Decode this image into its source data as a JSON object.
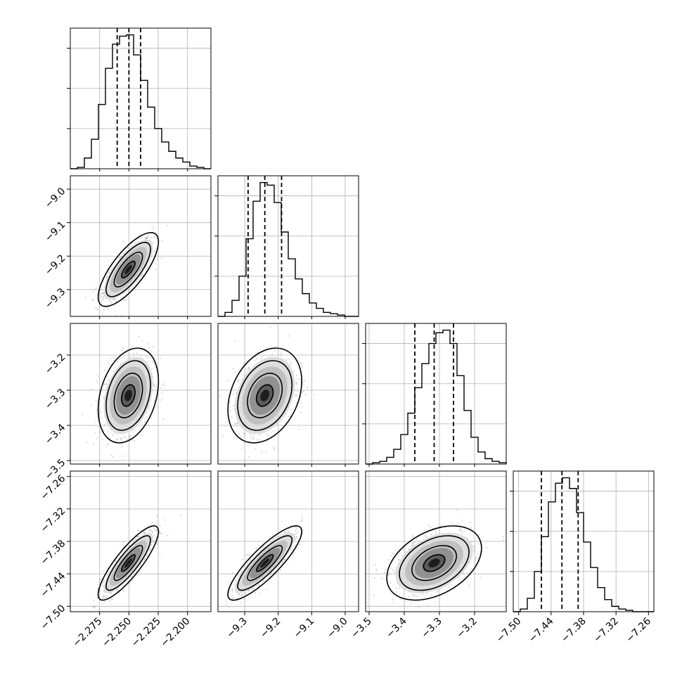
{
  "chart_data": {
    "type": "corner",
    "grid": true,
    "colors": {
      "frame": "#000000",
      "grid": "#b0b0b0",
      "points": "#808080",
      "hist": "#000000"
    },
    "parameters": [
      {
        "range": [
          -2.3,
          -2.18
        ],
        "ticks": [
          -2.275,
          -2.25,
          -2.225,
          -2.2
        ],
        "tick_labels": [
          "−2.275",
          "−2.250",
          "−2.225",
          "−2.200"
        ],
        "quantiles": [
          -2.26,
          -2.25,
          -2.24
        ],
        "mean": -2.2505,
        "sd": 0.0105
      },
      {
        "range": [
          -9.38,
          -8.96
        ],
        "ticks": [
          -9.3,
          -9.2,
          -9.1,
          -9.0
        ],
        "tick_labels": [
          "−9.3",
          "−9.2",
          "−9.1",
          "−9.0"
        ],
        "quantiles": [
          -9.29,
          -9.24,
          -9.19
        ],
        "mean": -9.24,
        "sd": 0.045
      },
      {
        "range": [
          -3.51,
          -3.11
        ],
        "ticks": [
          -3.5,
          -3.4,
          -3.3,
          -3.2
        ],
        "tick_labels": [
          "−3.5",
          "−3.4",
          "−3.3",
          "−3.2"
        ],
        "quantiles": [
          -3.37,
          -3.315,
          -3.26
        ],
        "mean": -3.315,
        "sd": 0.055
      },
      {
        "range": [
          -7.51,
          -7.25
        ],
        "ticks": [
          -7.5,
          -7.44,
          -7.38,
          -7.32,
          -7.26
        ],
        "tick_labels": [
          "−7.50",
          "−7.44",
          "−7.38",
          "−7.32",
          "−7.26"
        ],
        "quantiles": [
          -7.458,
          -7.42,
          -7.39
        ],
        "mean": -7.42,
        "sd": 0.028
      }
    ],
    "correlations": {
      "1-0": 0.75,
      "2-0": 0.3,
      "2-1": 0.3,
      "3-0": 0.85,
      "3-1": 0.85,
      "3-2": 0.4
    },
    "histograms": [
      [
        0.0,
        0.01,
        0.08,
        0.22,
        0.48,
        0.75,
        0.93,
        0.99,
        1.0,
        0.85,
        0.66,
        0.46,
        0.3,
        0.2,
        0.13,
        0.08,
        0.05,
        0.02,
        0.01,
        0.0
      ],
      [
        0.0,
        0.03,
        0.12,
        0.3,
        0.58,
        0.86,
        1.0,
        0.98,
        0.85,
        0.63,
        0.43,
        0.28,
        0.17,
        0.1,
        0.06,
        0.03,
        0.02,
        0.01,
        0.0,
        0.0
      ],
      [
        0.0,
        0.01,
        0.02,
        0.05,
        0.11,
        0.22,
        0.38,
        0.57,
        0.75,
        0.9,
        0.98,
        1.0,
        0.9,
        0.66,
        0.4,
        0.2,
        0.09,
        0.04,
        0.02,
        0.01
      ],
      [
        0.0,
        0.02,
        0.1,
        0.3,
        0.56,
        0.82,
        0.96,
        1.0,
        0.92,
        0.74,
        0.52,
        0.33,
        0.18,
        0.09,
        0.04,
        0.02,
        0.01,
        0.0,
        0.0,
        0.0
      ]
    ]
  }
}
